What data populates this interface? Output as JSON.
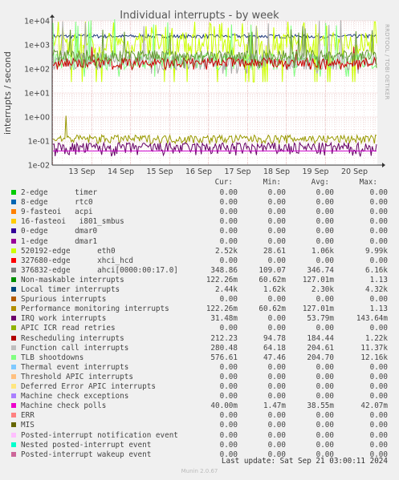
{
  "header": {
    "title": "Individual interrupts - by week",
    "side_label": "RRDTOOL / TOBI OETIKER"
  },
  "chart_data": {
    "type": "line",
    "title": "Individual interrupts - by week",
    "xlabel": "",
    "ylabel": "interrupts / second",
    "yscale": "log",
    "ylim": [
      0.01,
      10000
    ],
    "yticks": [
      "1e-02",
      "1e-01",
      "1e+00",
      "1e+01",
      "1e+02",
      "1e+03",
      "1e+04"
    ],
    "categories": [
      "13 Sep",
      "14 Sep",
      "15 Sep",
      "16 Sep",
      "17 Sep",
      "18 Sep",
      "19 Sep",
      "20 Sep"
    ],
    "grid": true,
    "legend_position": "bottom",
    "series": [
      {
        "name": "Local timer interrupts",
        "color": "#1f3a7a",
        "min": 1620,
        "avg": 2300,
        "max": 4320
      },
      {
        "name": "520192-edge      eth0",
        "color": "#ccff00",
        "min": 28.61,
        "avg": 1060,
        "max": 9990
      },
      {
        "name": "TLB shootdowns",
        "color": "#80ff80",
        "min": 47.46,
        "avg": 204.7,
        "max": 12160
      },
      {
        "name": "Function call interrupts",
        "color": "#aaaaaa",
        "min": 64.18,
        "avg": 204.61,
        "max": 11370
      },
      {
        "name": "Rescheduling interrupts",
        "color": "#cc0000",
        "min": 94.78,
        "avg": 184.44,
        "max": 1220
      },
      {
        "name": "376832-edge      ahci[0000:00:17.0]",
        "color": "#669933",
        "min": 109.07,
        "avg": 346.74,
        "max": 6160
      },
      {
        "name": "Non-maskable interrupts",
        "color": "#999900",
        "min": 0.06062,
        "avg": 0.12701,
        "max": 1.13
      },
      {
        "name": "IRQ work interrupts",
        "color": "#660066",
        "min": 0,
        "avg": 0.05379,
        "max": 0.14364
      },
      {
        "name": "Machine check polls",
        "color": "#cc00cc",
        "min": 0.00147,
        "avg": 0.03855,
        "max": 0.04207
      }
    ]
  },
  "legend": {
    "headers": {
      "cur": "Cur:",
      "min": "Min:",
      "avg": "Avg:",
      "max": "Max:"
    },
    "rows": [
      {
        "name": "2-edge      timer",
        "color": "#00cc00",
        "cur": "0.00",
        "min": "0.00",
        "avg": "0.00",
        "max": "0.00"
      },
      {
        "name": "8-edge      rtc0",
        "color": "#0066b3",
        "cur": "0.00",
        "min": "0.00",
        "avg": "0.00",
        "max": "0.00"
      },
      {
        "name": "9-fasteoi   acpi",
        "color": "#ff8000",
        "cur": "0.00",
        "min": "0.00",
        "avg": "0.00",
        "max": "0.00"
      },
      {
        "name": "16-fasteoi   i801_smbus",
        "color": "#ffcc00",
        "cur": "0.00",
        "min": "0.00",
        "avg": "0.00",
        "max": "0.00"
      },
      {
        "name": "0-edge      dmar0",
        "color": "#330099",
        "cur": "0.00",
        "min": "0.00",
        "avg": "0.00",
        "max": "0.00"
      },
      {
        "name": "1-edge      dmar1",
        "color": "#990099",
        "cur": "0.00",
        "min": "0.00",
        "avg": "0.00",
        "max": "0.00"
      },
      {
        "name": "520192-edge      eth0",
        "color": "#ccff00",
        "cur": "2.52k",
        "min": "28.61",
        "avg": "1.06k",
        "max": "9.99k"
      },
      {
        "name": "327680-edge      xhci_hcd",
        "color": "#ff0000",
        "cur": "0.00",
        "min": "0.00",
        "avg": "0.00",
        "max": "0.00"
      },
      {
        "name": "376832-edge      ahci[0000:00:17.0]",
        "color": "#808080",
        "cur": "348.86",
        "min": "109.07",
        "avg": "346.74",
        "max": "6.16k"
      },
      {
        "name": "Non-maskable interrupts",
        "color": "#008f00",
        "cur": "122.26m",
        "min": "60.62m",
        "avg": "127.01m",
        "max": "1.13"
      },
      {
        "name": "Local timer interrupts",
        "color": "#00487d",
        "cur": "2.44k",
        "min": "1.62k",
        "avg": "2.30k",
        "max": "4.32k"
      },
      {
        "name": "Spurious interrupts",
        "color": "#b35a00",
        "cur": "0.00",
        "min": "0.00",
        "avg": "0.00",
        "max": "0.00"
      },
      {
        "name": "Performance monitoring interrupts",
        "color": "#b38f00",
        "cur": "122.26m",
        "min": "60.62m",
        "avg": "127.01m",
        "max": "1.13"
      },
      {
        "name": "IRQ work interrupts",
        "color": "#6b006b",
        "cur": "31.48m",
        "min": "0.00",
        "avg": "53.79m",
        "max": "143.64m"
      },
      {
        "name": "APIC ICR read retries",
        "color": "#8fb300",
        "cur": "0.00",
        "min": "0.00",
        "avg": "0.00",
        "max": "0.00"
      },
      {
        "name": "Rescheduling interrupts",
        "color": "#b30000",
        "cur": "212.23",
        "min": "94.78",
        "avg": "184.44",
        "max": "1.22k"
      },
      {
        "name": "Function call interrupts",
        "color": "#bebebe",
        "cur": "280.48",
        "min": "64.18",
        "avg": "204.61",
        "max": "11.37k"
      },
      {
        "name": "TLB shootdowns",
        "color": "#80ff80",
        "cur": "576.61",
        "min": "47.46",
        "avg": "204.70",
        "max": "12.16k"
      },
      {
        "name": "Thermal event interrupts",
        "color": "#80c9ff",
        "cur": "0.00",
        "min": "0.00",
        "avg": "0.00",
        "max": "0.00"
      },
      {
        "name": "Threshold APIC interrupts",
        "color": "#ffc080",
        "cur": "0.00",
        "min": "0.00",
        "avg": "0.00",
        "max": "0.00"
      },
      {
        "name": "Deferred Error APIC interrupts",
        "color": "#ffe680",
        "cur": "0.00",
        "min": "0.00",
        "avg": "0.00",
        "max": "0.00"
      },
      {
        "name": "Machine check exceptions",
        "color": "#aa80ff",
        "cur": "0.00",
        "min": "0.00",
        "avg": "0.00",
        "max": "0.00"
      },
      {
        "name": "Machine check polls",
        "color": "#ee00cc",
        "cur": "40.00m",
        "min": "1.47m",
        "avg": "38.55m",
        "max": "42.07m"
      },
      {
        "name": "ERR",
        "color": "#ff8080",
        "cur": "0.00",
        "min": "0.00",
        "avg": "0.00",
        "max": "0.00"
      },
      {
        "name": "MIS",
        "color": "#666600",
        "cur": "0.00",
        "min": "0.00",
        "avg": "0.00",
        "max": "0.00"
      },
      {
        "name": "Posted-interrupt notification event",
        "color": "#ffbfff",
        "cur": "0.00",
        "min": "0.00",
        "avg": "0.00",
        "max": "0.00"
      },
      {
        "name": "Nested posted-interrupt event",
        "color": "#00ffcc",
        "cur": "0.00",
        "min": "0.00",
        "avg": "0.00",
        "max": "0.00"
      },
      {
        "name": "Posted-interrupt wakeup event",
        "color": "#cc6699",
        "cur": "0.00",
        "min": "0.00",
        "avg": "0.00",
        "max": "0.00"
      }
    ]
  },
  "footer": {
    "last_update": "Last update: Sat Sep 21 03:00:11 2024",
    "credit": "Munin 2.0.67"
  }
}
